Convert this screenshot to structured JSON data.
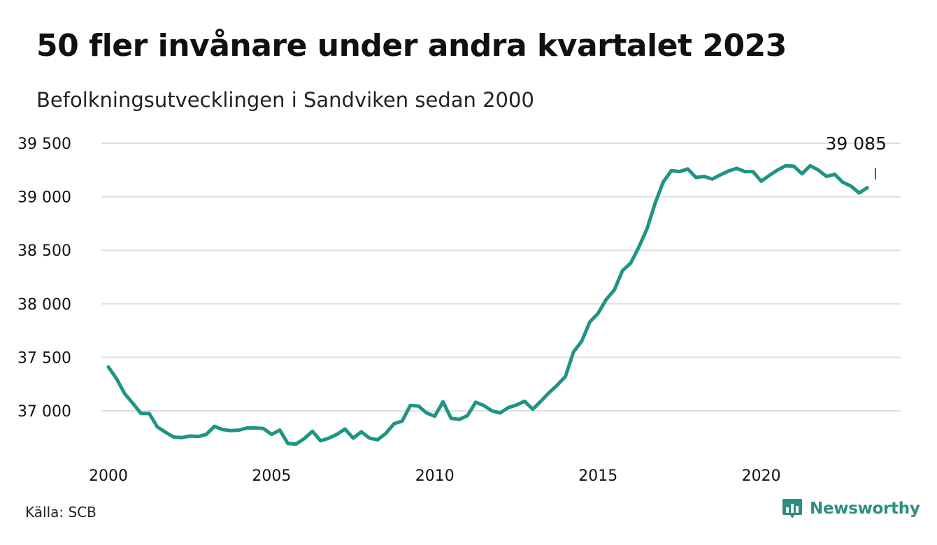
{
  "header": {
    "title": "50 fler invånare under andra kvartalet 2023",
    "subtitle": "Befolkningsutvecklingen i Sandviken sedan 2000"
  },
  "footer": {
    "source": "Källa: SCB",
    "brand": "Newsworthy"
  },
  "colors": {
    "line": "#1f9484",
    "grid": "#dedede",
    "text": "#111111",
    "brand": "#2d8e80"
  },
  "icons": {
    "brand_logo": "bar-chart-speech-bubble-icon"
  },
  "chart_data": {
    "type": "line",
    "xlabel": "",
    "ylabel": "",
    "xlim": [
      2000,
      2023.5
    ],
    "ylim": [
      36600,
      39600
    ],
    "grid": true,
    "x_ticks": [
      2000,
      2005,
      2010,
      2015,
      2020
    ],
    "x_tick_labels": [
      "2000",
      "2005",
      "2010",
      "2015",
      "2020"
    ],
    "y_ticks": [
      37000,
      37500,
      38000,
      38500,
      39000,
      39500
    ],
    "y_tick_labels": [
      "37 000",
      "37 500",
      "38 000",
      "38 500",
      "39 000",
      "39 500"
    ],
    "annotation": {
      "text": "39 085",
      "x": 2023.5,
      "y": 39085
    },
    "series": [
      {
        "x_start": 2000.0,
        "x_step": 0.25,
        "values": [
          37410,
          37300,
          37160,
          37070,
          36975,
          36975,
          36850,
          36800,
          36755,
          36750,
          36765,
          36760,
          36780,
          36855,
          36825,
          36815,
          36820,
          36840,
          36840,
          36835,
          36780,
          36820,
          36695,
          36690,
          36740,
          36810,
          36720,
          36745,
          36780,
          36830,
          36745,
          36805,
          36745,
          36730,
          36790,
          36880,
          36905,
          37050,
          37045,
          36980,
          36950,
          37085,
          36930,
          36920,
          36955,
          37080,
          37050,
          37000,
          36980,
          37030,
          37055,
          37090,
          37015,
          37090,
          37170,
          37240,
          37320,
          37550,
          37650,
          37830,
          37910,
          38040,
          38130,
          38310,
          38380,
          38530,
          38700,
          38940,
          39140,
          39245,
          39235,
          39260,
          39180,
          39190,
          39165,
          39205,
          39240,
          39265,
          39235,
          39235,
          39145,
          39200,
          39250,
          39290,
          39285,
          39215,
          39290,
          39250,
          39190,
          39210,
          39135,
          39100,
          39035,
          39085
        ]
      }
    ]
  }
}
